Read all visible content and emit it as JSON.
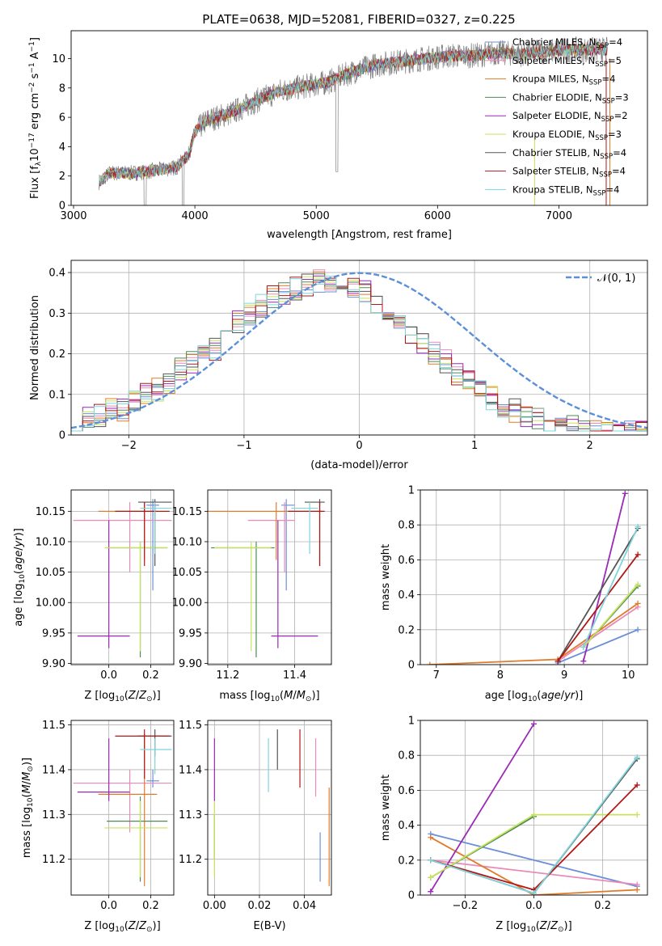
{
  "title": "PLATE=0638, MJD=52081, FIBERID=0327, z=0.225",
  "colors": {
    "Chabrier MILES": "#6a8fd8",
    "Salpeter MILES": "#e98ab8",
    "Kroupa MILES": "#e07b2a",
    "Chabrier ELODIE": "#4e8a5a",
    "Salpeter ELODIE": "#9a2ab8",
    "Kroupa ELODIE": "#c8e35a",
    "Chabrier STELIB": "#555555",
    "Salpeter STELIB": "#b01818",
    "Kroupa STELIB": "#7fd4dc",
    "data": "#808080",
    "normal": "#5b8fd8"
  },
  "chart_data": [
    {
      "id": "spectrum",
      "type": "line",
      "xlabel": "wavelength [Angstrom, rest frame]",
      "ylabel": "Flux [f_λ10^-17 erg cm^-2 s^-1 A^-1]",
      "xlim": [
        2980,
        7730
      ],
      "ylim": [
        0,
        11.9
      ],
      "xticks": [
        3000,
        4000,
        5000,
        6000,
        7000
      ],
      "yticks": [
        0,
        2,
        4,
        6,
        8,
        10
      ],
      "grid": false,
      "legend_position": "top-right",
      "legend": [
        {
          "name": "Chabrier MILES, N_SSP=4"
        },
        {
          "name": "Salpeter MILES, N_SSP=5"
        },
        {
          "name": "Kroupa MILES, N_SSP=4"
        },
        {
          "name": "Chabrier ELODIE, N_SSP=3"
        },
        {
          "name": "Salpeter ELODIE, N_SSP=2"
        },
        {
          "name": "Kroupa ELODIE, N_SSP=3"
        },
        {
          "name": "Chabrier STELIB, N_SSP=4"
        },
        {
          "name": "Salpeter STELIB, N_SSP=4"
        },
        {
          "name": "Kroupa STELIB, N_SSP=4"
        }
      ],
      "continuum": {
        "x": [
          3210,
          3300,
          3500,
          3700,
          3850,
          3950,
          4000,
          4100,
          4300,
          4500,
          4700,
          4900,
          5100,
          5300,
          5500,
          5700,
          5900,
          6100,
          6300,
          6500,
          6700,
          6900,
          7100,
          7300,
          7400
        ],
        "y": [
          1.6,
          2.2,
          2.2,
          2.4,
          2.6,
          3.5,
          5.0,
          5.8,
          6.3,
          7.1,
          7.8,
          8.1,
          8.4,
          9.1,
          9.6,
          9.8,
          10.0,
          10.2,
          10.2,
          10.4,
          10.3,
          10.5,
          10.6,
          10.6,
          10.6
        ]
      }
    },
    {
      "id": "residuals",
      "type": "bar",
      "xlabel": "(data-model)/error",
      "ylabel": "Normed distribution",
      "xlim": [
        -2.5,
        2.5
      ],
      "ylim": [
        0,
        0.43
      ],
      "xticks": [
        -2,
        -1,
        0,
        1,
        2
      ],
      "yticks": [
        0.0,
        0.1,
        0.2,
        0.3,
        0.4
      ],
      "grid": true,
      "legend_position": "top-right",
      "legend": [
        {
          "name": "𝒩(0, 1)"
        }
      ],
      "bin_width": 0.1,
      "series_values": [
        0.03,
        0.04,
        0.05,
        0.06,
        0.06,
        0.08,
        0.1,
        0.11,
        0.13,
        0.16,
        0.18,
        0.19,
        0.21,
        0.24,
        0.28,
        0.3,
        0.32,
        0.34,
        0.35,
        0.36,
        0.37,
        0.38,
        0.38,
        0.37,
        0.36,
        0.35,
        0.33,
        0.31,
        0.28,
        0.25,
        0.23,
        0.2,
        0.18,
        0.15,
        0.13,
        0.11,
        0.09,
        0.07,
        0.06,
        0.05,
        0.04,
        0.03,
        0.02,
        0.02,
        0.01,
        0.01,
        0.01,
        0.01,
        0.01,
        0.01
      ]
    },
    {
      "id": "age-vs-Z",
      "type": "scatter",
      "xlabel": "Z [log10(Z/Z☉)]",
      "ylabel": "age [log10(age/yr)]",
      "xlim": [
        -0.18,
        0.31
      ],
      "ylim": [
        9.898,
        10.185
      ],
      "xticks": [
        0.0,
        0.2
      ],
      "xticklabels": [
        "0.0",
        "0.2"
      ],
      "yticks": [
        9.9,
        9.95,
        10.0,
        10.05,
        10.1,
        10.15
      ],
      "yticklabels": [
        "9.90",
        "9.95",
        "10.00",
        "10.05",
        "10.10",
        "10.15"
      ],
      "grid": true
    },
    {
      "id": "age-vs-mass",
      "type": "scatter",
      "xlabel": "mass [log10(M/M☉)]",
      "ylabel": "",
      "xlim": [
        11.14,
        11.51
      ],
      "ylim": [
        9.898,
        10.185
      ],
      "xticks": [
        11.2,
        11.4
      ],
      "xticklabels": [
        "11.2",
        "11.4"
      ],
      "yticks": [
        9.9,
        9.95,
        10.0,
        10.05,
        10.1,
        10.15
      ],
      "yticklabels": [
        "9.90",
        "9.95",
        "10.00",
        "10.05",
        "10.10",
        "10.15"
      ],
      "grid": true
    },
    {
      "id": "massweight-vs-age",
      "type": "line",
      "xlabel": "age [log10(age/yr)]",
      "ylabel": "mass weight",
      "xlim": [
        6.75,
        10.3
      ],
      "ylim": [
        0,
        1.0
      ],
      "xticks": [
        7,
        8,
        9,
        10
      ],
      "yticks": [
        0.0,
        0.2,
        0.4,
        0.6,
        0.8,
        1.0
      ],
      "grid": true
    },
    {
      "id": "mass-vs-Z",
      "type": "scatter",
      "xlabel": "Z [log10(Z/Z☉)]",
      "ylabel": "mass [log10(M/M☉)]",
      "xlim": [
        -0.18,
        0.31
      ],
      "ylim": [
        11.12,
        11.51
      ],
      "xticks": [
        0.0,
        0.2
      ],
      "xticklabels": [
        "0.0",
        "0.2"
      ],
      "yticks": [
        11.2,
        11.3,
        11.4,
        11.5
      ],
      "yticklabels": [
        "11.2",
        "11.3",
        "11.4",
        "11.5"
      ],
      "grid": true
    },
    {
      "id": "mass-vs-EBV",
      "type": "scatter",
      "xlabel": "E(B-V)",
      "ylabel": "",
      "xlim": [
        -0.003,
        0.052
      ],
      "ylim": [
        11.12,
        11.51
      ],
      "xticks": [
        0.0,
        0.02,
        0.04
      ],
      "xticklabels": [
        "0.00",
        "0.02",
        "0.04"
      ],
      "yticks": [
        11.2,
        11.3,
        11.4,
        11.5
      ],
      "yticklabels": [
        "11.2",
        "11.3",
        "11.4",
        "11.5"
      ],
      "grid": true
    },
    {
      "id": "massweight-vs-Z",
      "type": "line",
      "xlabel": "Z [log10(Z/Z☉)]",
      "ylabel": "mass weight",
      "xlim": [
        -0.33,
        0.33
      ],
      "ylim": [
        0,
        1.0
      ],
      "xticks": [
        -0.2,
        0.0,
        0.2
      ],
      "xticklabels": [
        "−0.2",
        "0.0",
        "0.2"
      ],
      "yticks": [
        0.0,
        0.2,
        0.4,
        0.6,
        0.8,
        1.0
      ],
      "grid": true
    }
  ],
  "models": [
    {
      "name": "Chabrier MILES",
      "color": "#6a8fd8",
      "age": [
        10.16,
        10.02,
        10.17
      ],
      "Z": [
        0.21,
        0.18,
        0.24
      ],
      "mass": [
        11.375,
        11.36,
        11.4
      ],
      "ebv": [
        0.047,
        11.15,
        11.26
      ],
      "w_age": [
        [
          8.9,
          0.01
        ],
        [
          10.15,
          0.2
        ]
      ],
      "w_Z": [
        [
          -0.3,
          0.35
        ],
        [
          0.3,
          0.05
        ]
      ]
    },
    {
      "name": "Salpeter MILES",
      "color": "#e98ab8",
      "age": [
        10.135,
        10.05,
        10.165
      ],
      "Z": [
        0.1,
        -0.17,
        0.3
      ],
      "mass": [
        11.37,
        11.26,
        11.4
      ],
      "ebv": [
        0.045,
        11.34,
        11.47
      ],
      "w_age": [
        [
          8.9,
          0.02
        ],
        [
          10.15,
          0.33
        ]
      ],
      "w_Z": [
        [
          -0.3,
          0.2
        ],
        [
          0.3,
          0.06
        ]
      ]
    },
    {
      "name": "Kroupa MILES",
      "color": "#e07b2a",
      "age": [
        10.15,
        10.07,
        10.165
      ],
      "Z": [
        0.17,
        -0.05,
        0.23
      ],
      "mass": [
        11.345,
        11.14,
        11.48
      ],
      "ebv": [
        0.051,
        11.14,
        11.36
      ],
      "w_age": [
        [
          6.9,
          0.0
        ],
        [
          8.9,
          0.03
        ],
        [
          10.15,
          0.35
        ]
      ],
      "w_Z": [
        [
          -0.3,
          0.33
        ],
        [
          0.0,
          0.0
        ],
        [
          0.3,
          0.03
        ]
      ]
    },
    {
      "name": "Chabrier ELODIE",
      "color": "#4e8a5a",
      "age": [
        10.09,
        9.91,
        10.1
      ],
      "Z": [
        0.15,
        -0.01,
        0.28
      ],
      "mass": [
        11.285,
        11.15,
        11.34
      ],
      "ebv": [
        0.0,
        11.2,
        11.3
      ],
      "w_age": [
        [
          9.3,
          0.1
        ],
        [
          10.15,
          0.45
        ]
      ],
      "w_Z": [
        [
          -0.3,
          0.1
        ],
        [
          0.0,
          0.45
        ]
      ]
    },
    {
      "name": "Salpeter ELODIE",
      "color": "#9a2ab8",
      "age": [
        9.945,
        9.925,
        10.135
      ],
      "Z": [
        0.0,
        -0.15,
        0.1
      ],
      "mass": [
        11.35,
        11.33,
        11.47
      ],
      "ebv": [
        0.0,
        11.33,
        11.47
      ],
      "w_age": [
        [
          9.3,
          0.02
        ],
        [
          9.95,
          0.98
        ]
      ],
      "w_Z": [
        [
          -0.3,
          0.02
        ],
        [
          0.0,
          0.98
        ]
      ]
    },
    {
      "name": "Kroupa ELODIE",
      "color": "#c8e35a",
      "age": [
        10.09,
        9.92,
        10.1
      ],
      "Z": [
        0.15,
        -0.02,
        0.28
      ],
      "mass": [
        11.27,
        11.16,
        11.33
      ],
      "ebv": [
        0.0,
        11.16,
        11.33
      ],
      "w_age": [
        [
          9.3,
          0.1
        ],
        [
          10.15,
          0.46
        ]
      ],
      "w_Z": [
        [
          -0.3,
          0.1
        ],
        [
          0.0,
          0.46
        ],
        [
          0.3,
          0.46
        ]
      ]
    },
    {
      "name": "Chabrier STELIB",
      "color": "#555555",
      "age": [
        10.165,
        10.06,
        10.17
      ],
      "Z": [
        0.22,
        0.14,
        0.3
      ],
      "mass": [
        11.475,
        11.43,
        11.49
      ],
      "ebv": [
        0.028,
        11.4,
        11.49
      ],
      "w_age": [
        [
          8.9,
          0.02
        ],
        [
          10.15,
          0.78
        ]
      ],
      "w_Z": [
        [
          -0.3,
          0.2
        ],
        [
          0.0,
          0.01
        ],
        [
          0.3,
          0.78
        ]
      ]
    },
    {
      "name": "Salpeter STELIB",
      "color": "#b01818",
      "age": [
        10.15,
        10.06,
        10.165
      ],
      "Z": [
        0.17,
        0.03,
        0.29
      ],
      "mass": [
        11.475,
        11.38,
        11.49
      ],
      "ebv": [
        0.038,
        11.36,
        11.49
      ],
      "w_age": [
        [
          8.9,
          0.02
        ],
        [
          10.15,
          0.63
        ]
      ],
      "w_Z": [
        [
          -0.3,
          0.2
        ],
        [
          0.0,
          0.03
        ],
        [
          0.3,
          0.63
        ]
      ]
    },
    {
      "name": "Kroupa STELIB",
      "color": "#7fd4dc",
      "age": [
        10.155,
        10.08,
        10.165
      ],
      "Z": [
        0.22,
        0.15,
        0.3
      ],
      "mass": [
        11.445,
        11.39,
        11.47
      ],
      "ebv": [
        0.024,
        11.35,
        11.47
      ],
      "w_age": [
        [
          9.3,
          0.1
        ],
        [
          10.15,
          0.79
        ]
      ],
      "w_Z": [
        [
          -0.3,
          0.2
        ],
        [
          0.0,
          0.01
        ],
        [
          0.3,
          0.79
        ]
      ]
    }
  ]
}
